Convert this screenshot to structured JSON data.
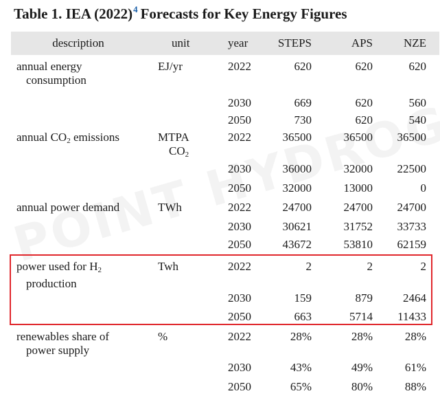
{
  "title": {
    "main": "Table 1. IEA (2022)",
    "ref": "4",
    "rest": "Forecasts for Key Energy Figures"
  },
  "headers": [
    "description",
    "unit",
    "year",
    "STEPS",
    "APS",
    "NZE"
  ],
  "groups": [
    {
      "desc_line1": "annual energy",
      "desc_line2": "consumption",
      "unit_line1": "EJ/yr",
      "unit_line2": "",
      "rows": [
        {
          "year": "2022",
          "steps": "620",
          "aps": "620",
          "nze": "620"
        },
        {
          "year": "2030",
          "steps": "669",
          "aps": "620",
          "nze": "560"
        },
        {
          "year": "2050",
          "steps": "730",
          "aps": "620",
          "nze": "540"
        }
      ]
    },
    {
      "desc_line1": "annual CO",
      "desc_sub": "2",
      "desc_after": " emissions",
      "unit_line1": "MTPA",
      "unit_line2": "CO",
      "unit_sub": "2",
      "rows": [
        {
          "year": "2022",
          "steps": "36500",
          "aps": "36500",
          "nze": "36500"
        },
        {
          "year": "2030",
          "steps": "36000",
          "aps": "32000",
          "nze": "22500"
        },
        {
          "year": "2050",
          "steps": "32000",
          "aps": "13000",
          "nze": "0"
        }
      ]
    },
    {
      "desc_line1": "annual power demand",
      "unit_line1": "TWh",
      "rows": [
        {
          "year": "2022",
          "steps": "24700",
          "aps": "24700",
          "nze": "24700"
        },
        {
          "year": "2030",
          "steps": "30621",
          "aps": "31752",
          "nze": "33733"
        },
        {
          "year": "2050",
          "steps": "43672",
          "aps": "53810",
          "nze": "62159"
        }
      ]
    },
    {
      "desc_line1": "power used for H",
      "desc_sub": "2",
      "desc_line2": "production",
      "unit_line1": "Twh",
      "rows": [
        {
          "year": "2022",
          "steps": "2",
          "aps": "2",
          "nze": "2"
        },
        {
          "year": "2030",
          "steps": "159",
          "aps": "879",
          "nze": "2464"
        },
        {
          "year": "2050",
          "steps": "663",
          "aps": "5714",
          "nze": "11433"
        }
      ]
    },
    {
      "desc_line1": "renewables share of",
      "desc_line2": "power supply",
      "unit_line1": "%",
      "rows": [
        {
          "year": "2022",
          "steps": "28%",
          "aps": "28%",
          "nze": "28%"
        },
        {
          "year": "2030",
          "steps": "43%",
          "aps": "49%",
          "nze": "61%"
        },
        {
          "year": "2050",
          "steps": "65%",
          "aps": "80%",
          "nze": "88%"
        }
      ]
    }
  ],
  "watermark": "POINT HYDROGEN",
  "highlight_color": "#e0262b",
  "ref_color": "#1b5fa8"
}
